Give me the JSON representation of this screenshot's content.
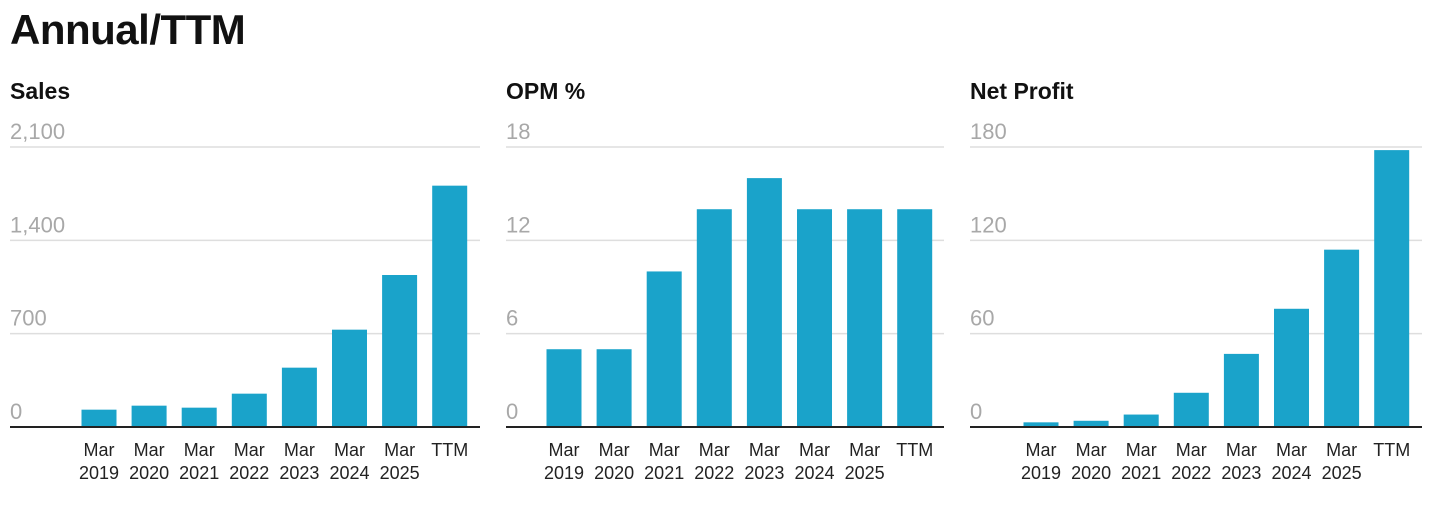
{
  "page": {
    "title": "Annual/TTM"
  },
  "colors": {
    "bar": "#1aa3ca",
    "grid": "#dedede",
    "tick": "#a8a8a8",
    "axis": "#222222"
  },
  "chart_data": [
    {
      "type": "bar",
      "title": "Sales",
      "categories": [
        [
          "Mar",
          "2019"
        ],
        [
          "Mar",
          "2020"
        ],
        [
          "Mar",
          "2021"
        ],
        [
          "Mar",
          "2022"
        ],
        [
          "Mar",
          "2023"
        ],
        [
          "Mar",
          "2024"
        ],
        [
          "Mar",
          "2025"
        ],
        [
          "TTM"
        ]
      ],
      "values": [
        130,
        160,
        145,
        250,
        445,
        730,
        1140,
        1810
      ],
      "yticks": [
        "0",
        "700",
        "1,400",
        "2,100"
      ],
      "ylim": [
        0,
        2100
      ],
      "grid": true
    },
    {
      "type": "bar",
      "title": "OPM %",
      "categories": [
        [
          "Mar",
          "2019"
        ],
        [
          "Mar",
          "2020"
        ],
        [
          "Mar",
          "2021"
        ],
        [
          "Mar",
          "2022"
        ],
        [
          "Mar",
          "2023"
        ],
        [
          "Mar",
          "2024"
        ],
        [
          "Mar",
          "2025"
        ],
        [
          "TTM"
        ]
      ],
      "values": [
        5,
        5,
        10,
        14,
        16,
        14,
        14,
        14
      ],
      "yticks": [
        "0",
        "6",
        "12",
        "18"
      ],
      "ylim": [
        0,
        18
      ],
      "grid": true
    },
    {
      "type": "bar",
      "title": "Net Profit",
      "categories": [
        [
          "Mar",
          "2019"
        ],
        [
          "Mar",
          "2020"
        ],
        [
          "Mar",
          "2021"
        ],
        [
          "Mar",
          "2022"
        ],
        [
          "Mar",
          "2023"
        ],
        [
          "Mar",
          "2024"
        ],
        [
          "Mar",
          "2025"
        ],
        [
          "TTM"
        ]
      ],
      "values": [
        3,
        4,
        8,
        22,
        47,
        76,
        114,
        178
      ],
      "yticks": [
        "0",
        "60",
        "120",
        "180"
      ],
      "ylim": [
        0,
        180
      ],
      "grid": true
    }
  ]
}
